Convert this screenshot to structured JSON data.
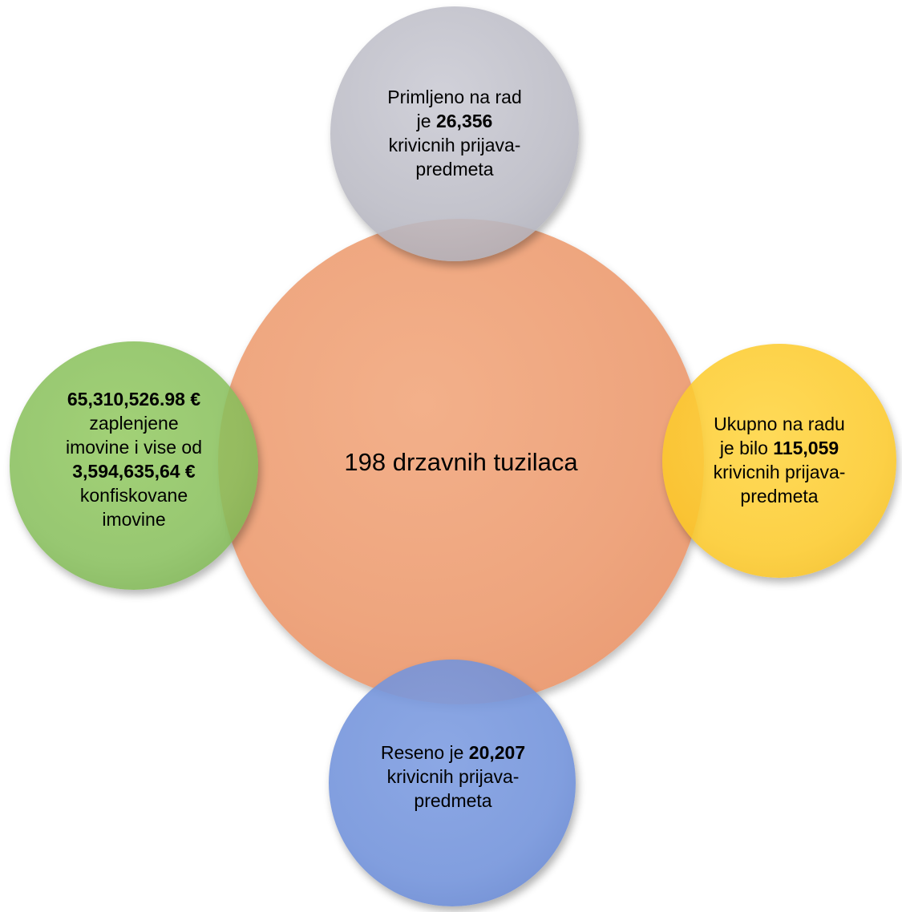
{
  "center": {
    "text": "198 drzavnih tuzilaca"
  },
  "top": {
    "line1": "Primljeno na rad",
    "line2_prefix": "je ",
    "line2_value": "26,356",
    "line3": "krivicnih prijava-",
    "line4": "predmeta"
  },
  "right": {
    "line1": "Ukupno na radu",
    "line2_prefix": "je bilo ",
    "line2_value": "115,059",
    "line3": "krivicnih prijava-",
    "line4": "predmeta"
  },
  "left": {
    "line1_value": "65,310,526.98 €",
    "line2": "zaplenjene",
    "line3": "imovine i vise od",
    "line4_value": "3,594,635,64 €",
    "line5": "konfiskovane",
    "line6": "imovine"
  },
  "bottom": {
    "line1_prefix": "Reseno je ",
    "line1_value": "20,207",
    "line2": "krivicnih prijava-",
    "line3": "predmeta"
  },
  "colors": {
    "center": "#eea57e",
    "top": "#bcbcc6",
    "right": "#fcc928",
    "left": "#86be5a",
    "bottom": "#7091da"
  }
}
